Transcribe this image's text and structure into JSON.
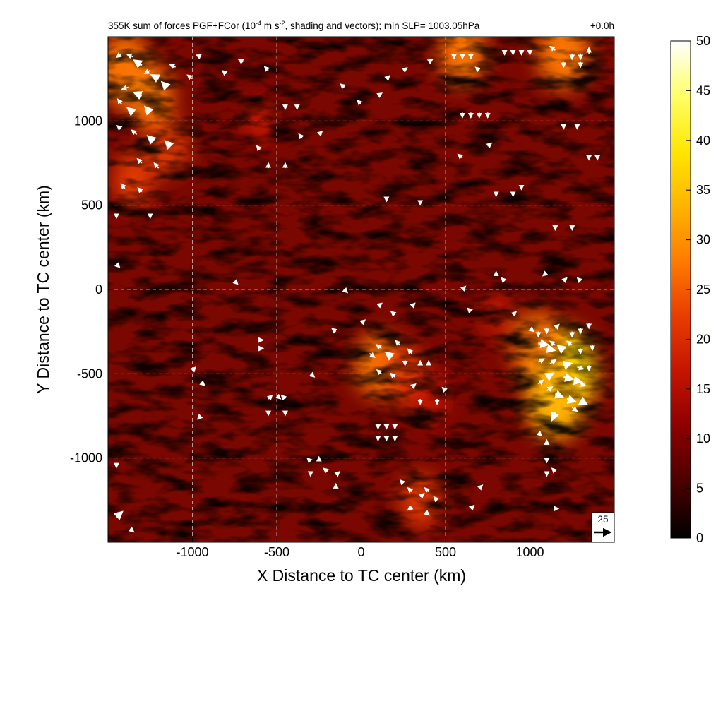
{
  "chart_data": {
    "type": "heatmap",
    "title": "355K sum of forces PGF+FCor (10⁻⁴ m s⁻², shading and vectors); min SLP= 1003.05hPa",
    "title_parts": {
      "pre": "355K sum of forces PGF+FCor (10",
      "exp1": "-4",
      "mid": " m s",
      "exp2": "-2",
      "post": ", shading and vectors); min SLP= 1003.05hPa"
    },
    "time_label": "+0.0h",
    "xlabel": "X Distance to TC center (km)",
    "ylabel": "Y Distance to TC center (km)",
    "xlim": [
      -1500,
      1500
    ],
    "ylim": [
      -1500,
      1500
    ],
    "xticks": [
      -1000,
      -500,
      0,
      500,
      1000
    ],
    "yticks": [
      -1000,
      -500,
      0,
      500,
      1000
    ],
    "grid": true,
    "colorbar": {
      "min": 0,
      "max": 50,
      "ticks": [
        0,
        5,
        10,
        15,
        20,
        25,
        30,
        35,
        40,
        45,
        50
      ],
      "colormap": [
        "#000000",
        "#4a0000",
        "#8c0000",
        "#c41400",
        "#e83c00",
        "#ff7a00",
        "#ffb400",
        "#ffe600",
        "#ffff66",
        "#ffffff"
      ]
    },
    "reference_vector": {
      "label": "25",
      "magnitude": 25
    },
    "hotspots": [
      {
        "x": -1400,
        "y": 1300,
        "value": 30
      },
      {
        "x": -1250,
        "y": 1150,
        "value": 25
      },
      {
        "x": -1150,
        "y": 850,
        "value": 22
      },
      {
        "x": -1350,
        "y": 650,
        "value": 20
      },
      {
        "x": 1200,
        "y": 1400,
        "value": 30
      },
      {
        "x": 600,
        "y": 1400,
        "value": 25
      },
      {
        "x": 1200,
        "y": -500,
        "value": 40
      },
      {
        "x": 1050,
        "y": -350,
        "value": 30
      },
      {
        "x": 1150,
        "y": -650,
        "value": 35
      },
      {
        "x": 100,
        "y": -450,
        "value": 25
      },
      {
        "x": 250,
        "y": -500,
        "value": 22
      },
      {
        "x": 400,
        "y": -650,
        "value": 18
      },
      {
        "x": 350,
        "y": -1250,
        "value": 20
      },
      {
        "x": -600,
        "y": 1000,
        "value": 15
      },
      {
        "x": 800,
        "y": -150,
        "value": 15
      }
    ],
    "vectors": [
      {
        "x": -1420,
        "y": 1400,
        "u": -8,
        "v": -6
      },
      {
        "x": -1350,
        "y": 1380,
        "u": -10,
        "v": 4
      },
      {
        "x": -1300,
        "y": 1330,
        "u": -12,
        "v": 8
      },
      {
        "x": -1250,
        "y": 1300,
        "u": -9,
        "v": -5
      },
      {
        "x": -1200,
        "y": 1250,
        "u": -11,
        "v": 6
      },
      {
        "x": -1150,
        "y": 1200,
        "u": -8,
        "v": 8
      },
      {
        "x": -1380,
        "y": 1200,
        "u": -10,
        "v": -3
      },
      {
        "x": -1300,
        "y": 1150,
        "u": -12,
        "v": 5
      },
      {
        "x": -1420,
        "y": 1100,
        "u": -6,
        "v": 8
      },
      {
        "x": -1350,
        "y": 1050,
        "u": -9,
        "v": 7
      },
      {
        "x": -1250,
        "y": 1050,
        "u": -8,
        "v": 9
      },
      {
        "x": -1420,
        "y": 950,
        "u": -7,
        "v": 6
      },
      {
        "x": -1330,
        "y": 920,
        "u": -8,
        "v": 7
      },
      {
        "x": -1230,
        "y": 880,
        "u": -9,
        "v": 8
      },
      {
        "x": -1130,
        "y": 850,
        "u": -8,
        "v": 8
      },
      {
        "x": -1300,
        "y": 750,
        "u": -7,
        "v": 7
      },
      {
        "x": -1200,
        "y": 720,
        "u": -7,
        "v": 8
      },
      {
        "x": -1400,
        "y": 600,
        "u": -6,
        "v": 7
      },
      {
        "x": -1300,
        "y": 580,
        "u": -6,
        "v": 6
      },
      {
        "x": -1100,
        "y": 1320,
        "u": -9,
        "v": 4
      },
      {
        "x": -1000,
        "y": 1250,
        "u": -8,
        "v": 6
      },
      {
        "x": -950,
        "y": 1380,
        "u": -7,
        "v": 3
      },
      {
        "x": -800,
        "y": 1280,
        "u": -6,
        "v": 5
      },
      {
        "x": -700,
        "y": 1350,
        "u": -7,
        "v": 4
      },
      {
        "x": -550,
        "y": 1300,
        "u": -6,
        "v": 6
      },
      {
        "x": -450,
        "y": 1100,
        "u": 0,
        "v": -8
      },
      {
        "x": -380,
        "y": 1100,
        "u": 0,
        "v": -8
      },
      {
        "x": -600,
        "y": 830,
        "u": -5,
        "v": 6
      },
      {
        "x": -550,
        "y": 720,
        "u": 0,
        "v": 8
      },
      {
        "x": -450,
        "y": 720,
        "u": 0,
        "v": 8
      },
      {
        "x": -350,
        "y": 900,
        "u": -5,
        "v": 6
      },
      {
        "x": -250,
        "y": 920,
        "u": 5,
        "v": 5
      },
      {
        "x": -100,
        "y": 1200,
        "u": -6,
        "v": 5
      },
      {
        "x": 0,
        "y": 1100,
        "u": -6,
        "v": 6
      },
      {
        "x": 100,
        "y": 1150,
        "u": 6,
        "v": 4
      },
      {
        "x": 150,
        "y": 1250,
        "u": 5,
        "v": 5
      },
      {
        "x": 250,
        "y": 1300,
        "u": 6,
        "v": 4
      },
      {
        "x": 400,
        "y": 1350,
        "u": 6,
        "v": 4
      },
      {
        "x": 550,
        "y": 1400,
        "u": 0,
        "v": -8
      },
      {
        "x": 600,
        "y": 1400,
        "u": 0,
        "v": -8
      },
      {
        "x": 650,
        "y": 1400,
        "u": 0,
        "v": -8
      },
      {
        "x": 700,
        "y": 1300,
        "u": -6,
        "v": 5
      },
      {
        "x": 600,
        "y": 1050,
        "u": 0,
        "v": -8
      },
      {
        "x": 650,
        "y": 1050,
        "u": 0,
        "v": -8
      },
      {
        "x": 700,
        "y": 1050,
        "u": 0,
        "v": -8
      },
      {
        "x": 750,
        "y": 1050,
        "u": 0,
        "v": -8
      },
      {
        "x": 850,
        "y": 1420,
        "u": 0,
        "v": -7
      },
      {
        "x": 900,
        "y": 1420,
        "u": 0,
        "v": -7
      },
      {
        "x": 950,
        "y": 1420,
        "u": 0,
        "v": -7
      },
      {
        "x": 1000,
        "y": 1420,
        "u": 0,
        "v": -7
      },
      {
        "x": 1150,
        "y": 1420,
        "u": -8,
        "v": 6
      },
      {
        "x": 1250,
        "y": 1400,
        "u": 0,
        "v": -9
      },
      {
        "x": 1300,
        "y": 1400,
        "u": 0,
        "v": -9
      },
      {
        "x": 1350,
        "y": 1400,
        "u": 0,
        "v": 9
      },
      {
        "x": 1200,
        "y": 1350,
        "u": 0,
        "v": -8
      },
      {
        "x": 1300,
        "y": 1350,
        "u": 0,
        "v": -8
      },
      {
        "x": 1200,
        "y": 980,
        "u": 0,
        "v": -7
      },
      {
        "x": 1280,
        "y": 980,
        "u": 0,
        "v": -7
      },
      {
        "x": 1350,
        "y": 800,
        "u": 0,
        "v": -8
      },
      {
        "x": 1400,
        "y": 800,
        "u": 0,
        "v": -8
      },
      {
        "x": 800,
        "y": 580,
        "u": 0,
        "v": -7
      },
      {
        "x": 900,
        "y": 580,
        "u": 0,
        "v": -7
      },
      {
        "x": 950,
        "y": 620,
        "u": 0,
        "v": -7
      },
      {
        "x": 1150,
        "y": 380,
        "u": 0,
        "v": -7
      },
      {
        "x": 1250,
        "y": 380,
        "u": 0,
        "v": -7
      },
      {
        "x": 600,
        "y": 780,
        "u": -7,
        "v": 6
      },
      {
        "x": 750,
        "y": 850,
        "u": 6,
        "v": 5
      },
      {
        "x": 150,
        "y": 550,
        "u": 0,
        "v": -7
      },
      {
        "x": 350,
        "y": 530,
        "u": 0,
        "v": -7
      },
      {
        "x": -1250,
        "y": 450,
        "u": 0,
        "v": -7
      },
      {
        "x": -1450,
        "y": 450,
        "u": 0,
        "v": -7
      },
      {
        "x": -1450,
        "y": 150,
        "u": 5,
        "v": -5
      },
      {
        "x": -750,
        "y": 50,
        "u": 5,
        "v": -5
      },
      {
        "x": -100,
        "y": 0,
        "u": 5,
        "v": -5
      },
      {
        "x": 100,
        "y": -100,
        "u": 6,
        "v": 5
      },
      {
        "x": 200,
        "y": -150,
        "u": -6,
        "v": 5
      },
      {
        "x": 300,
        "y": -100,
        "u": 5,
        "v": 5
      },
      {
        "x": -150,
        "y": -250,
        "u": -6,
        "v": 5
      },
      {
        "x": 0,
        "y": -200,
        "u": 6,
        "v": 5
      },
      {
        "x": 50,
        "y": -380,
        "u": 8,
        "v": -6
      },
      {
        "x": 120,
        "y": -350,
        "u": -8,
        "v": 6
      },
      {
        "x": 180,
        "y": -400,
        "u": -9,
        "v": 7
      },
      {
        "x": 230,
        "y": -330,
        "u": -7,
        "v": 7
      },
      {
        "x": 260,
        "y": -420,
        "u": 0,
        "v": -8
      },
      {
        "x": 300,
        "y": -380,
        "u": -6,
        "v": 7
      },
      {
        "x": 120,
        "y": -500,
        "u": -7,
        "v": 6
      },
      {
        "x": 200,
        "y": -520,
        "u": -7,
        "v": 6
      },
      {
        "x": 350,
        "y": -450,
        "u": 0,
        "v": 7
      },
      {
        "x": 400,
        "y": -450,
        "u": 0,
        "v": 7
      },
      {
        "x": 300,
        "y": -580,
        "u": 6,
        "v": 5
      },
      {
        "x": 350,
        "y": -650,
        "u": 0,
        "v": -8
      },
      {
        "x": 450,
        "y": -650,
        "u": 0,
        "v": -8
      },
      {
        "x": 500,
        "y": -600,
        "u": -5,
        "v": 5
      },
      {
        "x": 100,
        "y": -800,
        "u": 0,
        "v": -7
      },
      {
        "x": 150,
        "y": -800,
        "u": 0,
        "v": -7
      },
      {
        "x": 200,
        "y": -800,
        "u": 0,
        "v": -7
      },
      {
        "x": 100,
        "y": -870,
        "u": 0,
        "v": -7
      },
      {
        "x": 150,
        "y": -870,
        "u": 0,
        "v": -7
      },
      {
        "x": 200,
        "y": -870,
        "u": 0,
        "v": -7
      },
      {
        "x": 600,
        "y": 0,
        "u": 5,
        "v": 5
      },
      {
        "x": 800,
        "y": 80,
        "u": 0,
        "v": 7
      },
      {
        "x": 850,
        "y": 50,
        "u": -5,
        "v": 5
      },
      {
        "x": 1100,
        "y": 100,
        "u": -6,
        "v": -5
      },
      {
        "x": 1200,
        "y": 50,
        "u": 5,
        "v": 5
      },
      {
        "x": 1300,
        "y": 50,
        "u": -5,
        "v": 5
      },
      {
        "x": 900,
        "y": -150,
        "u": 5,
        "v": 5
      },
      {
        "x": 650,
        "y": -130,
        "u": -5,
        "v": 5
      },
      {
        "x": 1000,
        "y": -230,
        "u": 6,
        "v": -5
      },
      {
        "x": 1050,
        "y": -250,
        "u": 0,
        "v": -8
      },
      {
        "x": 1100,
        "y": -230,
        "u": 0,
        "v": -8
      },
      {
        "x": 1150,
        "y": -230,
        "u": 6,
        "v": 6
      },
      {
        "x": 1250,
        "y": -250,
        "u": 0,
        "v": -8
      },
      {
        "x": 1300,
        "y": -230,
        "u": 0,
        "v": -8
      },
      {
        "x": 1350,
        "y": -200,
        "u": 0,
        "v": -8
      },
      {
        "x": 1050,
        "y": -320,
        "u": 15,
        "v": -2
      },
      {
        "x": 1100,
        "y": -350,
        "u": 12,
        "v": -3
      },
      {
        "x": 1150,
        "y": -330,
        "u": -8,
        "v": 6
      },
      {
        "x": 1200,
        "y": -360,
        "u": -9,
        "v": 7
      },
      {
        "x": 1250,
        "y": -330,
        "u": -8,
        "v": 6
      },
      {
        "x": 1300,
        "y": -350,
        "u": 0,
        "v": -8
      },
      {
        "x": 1370,
        "y": -330,
        "u": 0,
        "v": -8
      },
      {
        "x": 1050,
        "y": -430,
        "u": 9,
        "v": 5
      },
      {
        "x": 1120,
        "y": -440,
        "u": 9,
        "v": 6
      },
      {
        "x": 1200,
        "y": -450,
        "u": 12,
        "v": 3
      },
      {
        "x": 1280,
        "y": -460,
        "u": 10,
        "v": -3
      },
      {
        "x": 1350,
        "y": -450,
        "u": 0,
        "v": -8
      },
      {
        "x": 1100,
        "y": -520,
        "u": 10,
        "v": 6
      },
      {
        "x": 1200,
        "y": -520,
        "u": 14,
        "v": -3
      },
      {
        "x": 1260,
        "y": -540,
        "u": 12,
        "v": -2
      },
      {
        "x": 1300,
        "y": -560,
        "u": 8,
        "v": -3
      },
      {
        "x": 1050,
        "y": -560,
        "u": 8,
        "v": 6
      },
      {
        "x": 1100,
        "y": -600,
        "u": 9,
        "v": 6
      },
      {
        "x": 1150,
        "y": -620,
        "u": 12,
        "v": -5
      },
      {
        "x": 1220,
        "y": -650,
        "u": 13,
        "v": -4
      },
      {
        "x": 1300,
        "y": -660,
        "u": 10,
        "v": -6
      },
      {
        "x": 1150,
        "y": -730,
        "u": -5,
        "v": -12
      },
      {
        "x": 1250,
        "y": -700,
        "u": 8,
        "v": -6
      },
      {
        "x": 1050,
        "y": -850,
        "u": 5,
        "v": -5
      },
      {
        "x": 1100,
        "y": -920,
        "u": 0,
        "v": 7
      },
      {
        "x": 1100,
        "y": -1000,
        "u": 0,
        "v": -7
      },
      {
        "x": 1100,
        "y": -1080,
        "u": 0,
        "v": -7
      },
      {
        "x": 1150,
        "y": -1080,
        "u": -5,
        "v": 5
      },
      {
        "x": -550,
        "y": -650,
        "u": 6,
        "v": 6
      },
      {
        "x": -500,
        "y": -630,
        "u": 6,
        "v": -5
      },
      {
        "x": -450,
        "y": -650,
        "u": -6,
        "v": 6
      },
      {
        "x": -550,
        "y": -720,
        "u": 0,
        "v": -7
      },
      {
        "x": -450,
        "y": -720,
        "u": 0,
        "v": -7
      },
      {
        "x": -300,
        "y": -1020,
        "u": -5,
        "v": 5
      },
      {
        "x": -250,
        "y": -1020,
        "u": 0,
        "v": 7
      },
      {
        "x": -300,
        "y": -1080,
        "u": 0,
        "v": -7
      },
      {
        "x": -200,
        "y": -1080,
        "u": -6,
        "v": 5
      },
      {
        "x": -150,
        "y": -1100,
        "u": 6,
        "v": 5
      },
      {
        "x": -150,
        "y": -1180,
        "u": 0,
        "v": 7
      },
      {
        "x": 250,
        "y": -1150,
        "u": -5,
        "v": 5
      },
      {
        "x": 300,
        "y": -1200,
        "u": -6,
        "v": 6
      },
      {
        "x": 350,
        "y": -1230,
        "u": 6,
        "v": 5
      },
      {
        "x": 400,
        "y": -1200,
        "u": -6,
        "v": 6
      },
      {
        "x": 300,
        "y": -1290,
        "u": -6,
        "v": -5
      },
      {
        "x": 380,
        "y": -1320,
        "u": 6,
        "v": -5
      },
      {
        "x": 450,
        "y": -1250,
        "u": -5,
        "v": 5
      },
      {
        "x": 700,
        "y": -1180,
        "u": 5,
        "v": 5
      },
      {
        "x": 650,
        "y": -1300,
        "u": 5,
        "v": 5
      },
      {
        "x": 1150,
        "y": -1300,
        "u": 5,
        "v": 0
      },
      {
        "x": -1000,
        "y": -480,
        "u": 5,
        "v": 5
      },
      {
        "x": -950,
        "y": -550,
        "u": 6,
        "v": -5
      },
      {
        "x": -950,
        "y": -750,
        "u": -5,
        "v": -5
      },
      {
        "x": -1450,
        "y": -1030,
        "u": 0,
        "v": -7
      },
      {
        "x": -1450,
        "y": -1350,
        "u": 9,
        "v": 8
      },
      {
        "x": -1370,
        "y": -1420,
        "u": 6,
        "v": -5
      },
      {
        "x": -600,
        "y": -300,
        "u": 5,
        "v": 0
      },
      {
        "x": -600,
        "y": -350,
        "u": 5,
        "v": 0
      },
      {
        "x": -300,
        "y": -500,
        "u": 6,
        "v": -5
      }
    ]
  }
}
